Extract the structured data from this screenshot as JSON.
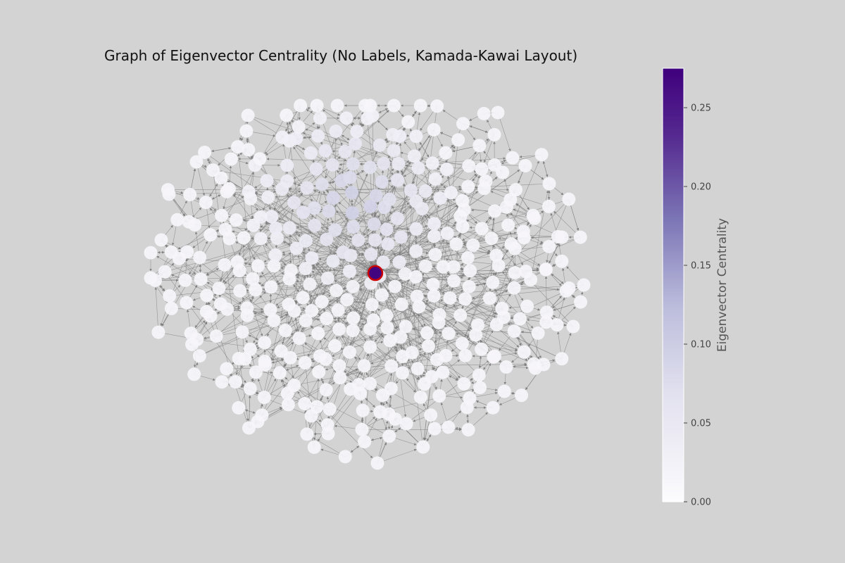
{
  "chart_data": {
    "type": "network",
    "title": "Graph of Eigenvector Centrality (No Labels, Kamada-Kawai Layout)",
    "layout": "Kamada-Kawai",
    "node_labels_shown": false,
    "directed": true,
    "colorbar": {
      "label": "Eigenvector Centrality",
      "range": [
        0,
        0.275
      ],
      "ticks": [
        0.0,
        0.05,
        0.1,
        0.15,
        0.2,
        0.25
      ],
      "tick_labels": [
        "0.00",
        "0.05",
        "0.10",
        "0.15",
        "0.20",
        "0.25"
      ],
      "colormap": "Purples"
    },
    "max_centrality_node": {
      "centrality": 0.27,
      "highlight_color": "#cc0000"
    },
    "approx_node_count": 420,
    "centrality_note": "Most nodes near 0; a central cluster reaches about 0.08-0.15"
  },
  "colors": {
    "background": "#d3d3d3",
    "edge": "#808080",
    "colormap_low": "#fcfbfd",
    "colormap_mid": "#7c76b6",
    "colormap_high": "#3f007d",
    "highlight": "#cc0000"
  }
}
